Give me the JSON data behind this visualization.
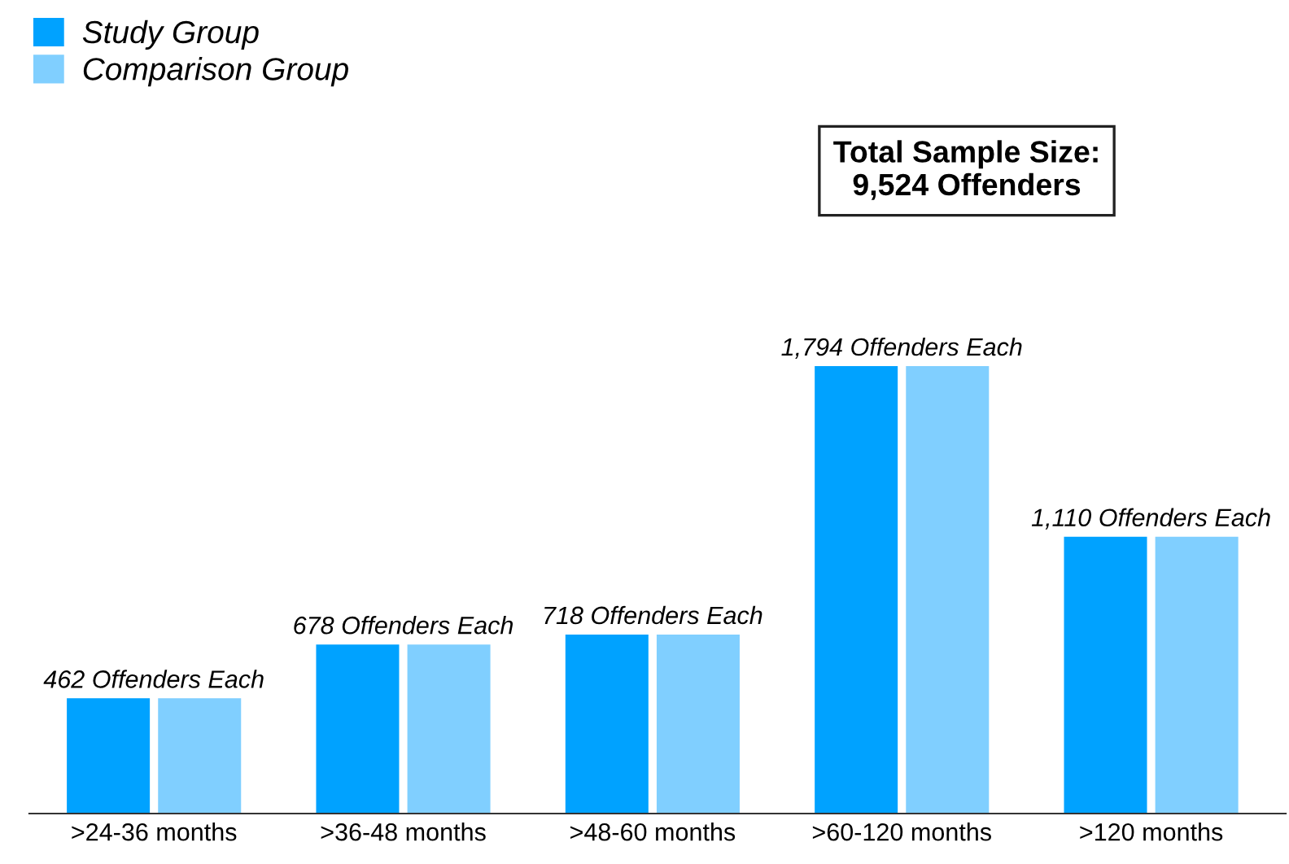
{
  "chart_data": {
    "type": "bar",
    "categories": [
      ">24-36 months",
      ">36-48 months",
      ">48-60 months",
      ">60-120 months",
      ">120 months"
    ],
    "series": [
      {
        "name": "Study Group",
        "color": "#00a2ff",
        "values": [
          462,
          678,
          718,
          1794,
          1110
        ],
        "value_labels": [
          "462 Offenders Each",
          "678 Offenders Each",
          "718 Offenders Each",
          "1,794 Offenders Each",
          "1,110 Offenders Each"
        ]
      },
      {
        "name": "Comparison Group",
        "color": "#80cfff",
        "values": [
          462,
          678,
          718,
          1794,
          1110
        ]
      }
    ],
    "annotations": [
      "Total Sample Size:\n9,524 Offenders"
    ],
    "legend": "top left",
    "grid": false
  }
}
